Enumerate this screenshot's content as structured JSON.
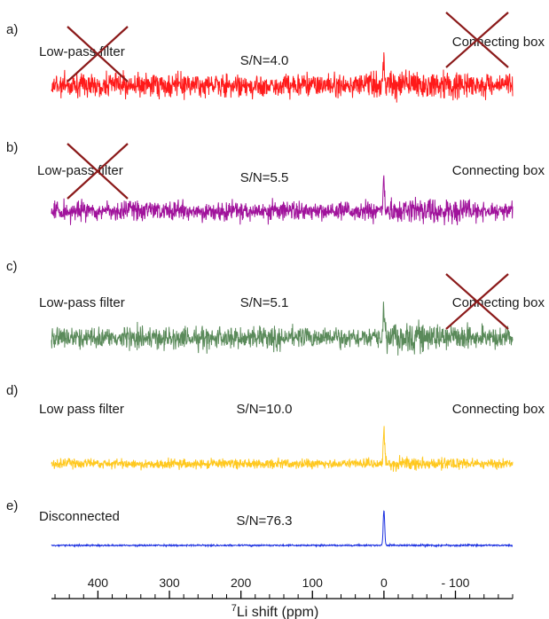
{
  "chart_data": {
    "type": "line",
    "xlabel_sup": "7",
    "xlabel_main": "Li shift (ppm)",
    "x_reversed": true,
    "xlim": [
      465,
      -180
    ],
    "xticks": [
      {
        "value": 400,
        "label": "400"
      },
      {
        "value": 300,
        "label": "300"
      },
      {
        "value": 200,
        "label": "200"
      },
      {
        "value": 100,
        "label": "100"
      },
      {
        "value": 0,
        "label": "0"
      },
      {
        "value": -100,
        "label": "- 100"
      }
    ],
    "minor_tick_step": 20,
    "peak_position": 0,
    "series": [
      {
        "label": "a)",
        "sn_text": "S/N=4.0",
        "left_text": "Low-pass filter",
        "right_text": "Connecting box",
        "left_crossed": true,
        "right_crossed": true,
        "color": "#ff1a1a",
        "noise": 12,
        "peak": 30
      },
      {
        "label": "b)",
        "sn_text": "S/N=5.5",
        "left_text": "Low-pass filter",
        "right_text": "Connecting box",
        "left_crossed": true,
        "right_crossed": false,
        "color": "#a0129b",
        "noise": 10,
        "peak": 36
      },
      {
        "label": "c)",
        "sn_text": "S/N=5.1",
        "left_text": "Low-pass filter",
        "right_text": "Connecting box",
        "left_crossed": false,
        "right_crossed": true,
        "color": "#5a8a5a",
        "noise": 11,
        "peak": 34
      },
      {
        "label": "d)",
        "sn_text": "S/N=10.0",
        "left_text": "Low pass filter",
        "right_text": "Connecting box",
        "left_crossed": false,
        "right_crossed": false,
        "color": "#ffc81e",
        "noise": 5,
        "peak": 40
      },
      {
        "label": "e)",
        "sn_text": "S/N=76.3",
        "left_text": "Disconnected",
        "right_text": "",
        "left_crossed": false,
        "right_crossed": false,
        "color": "#1a2fe0",
        "noise": 0.8,
        "peak": 40
      }
    ]
  }
}
